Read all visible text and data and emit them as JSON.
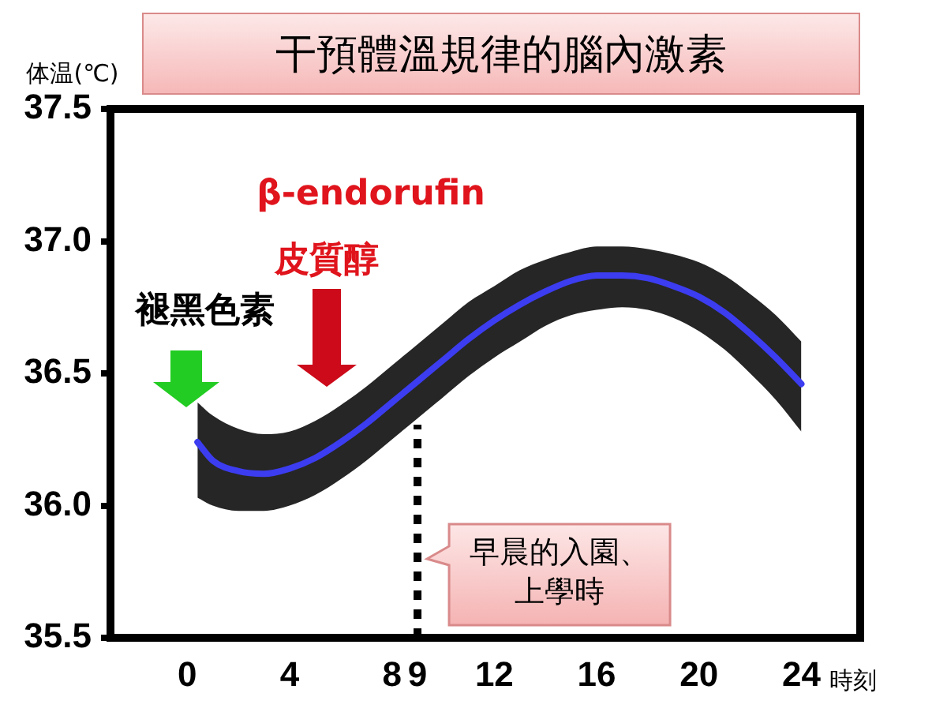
{
  "chart_data": {
    "type": "line",
    "title": "干預體溫規律的腦內激素",
    "xlabel": "時刻",
    "ylabel": "体温(℃)",
    "x": [
      0.4,
      1,
      2,
      3,
      4,
      5,
      6,
      7,
      8,
      9,
      10,
      11,
      12,
      13,
      14,
      15,
      16,
      17,
      18,
      19,
      20,
      21,
      22,
      23,
      24
    ],
    "series": [
      {
        "color": "#3c3cf0",
        "values": [
          36.24,
          36.17,
          36.13,
          36.12,
          36.14,
          36.18,
          36.24,
          36.31,
          36.39,
          36.47,
          36.55,
          36.63,
          36.7,
          36.76,
          36.81,
          36.85,
          36.87,
          36.87,
          36.86,
          36.83,
          36.79,
          36.73,
          36.65,
          36.56,
          36.46
        ],
        "upper": [
          36.39,
          36.34,
          36.29,
          36.27,
          36.28,
          36.32,
          36.38,
          36.45,
          36.53,
          36.61,
          36.69,
          36.77,
          36.83,
          36.89,
          36.93,
          36.96,
          36.98,
          36.98,
          36.97,
          36.95,
          36.92,
          36.87,
          36.8,
          36.72,
          36.62
        ],
        "lower": [
          36.03,
          36.0,
          35.98,
          35.98,
          36.0,
          36.04,
          36.1,
          36.17,
          36.25,
          36.33,
          36.41,
          36.49,
          36.56,
          36.62,
          36.68,
          36.72,
          36.74,
          36.75,
          36.74,
          36.71,
          36.66,
          36.59,
          36.5,
          36.4,
          36.28
        ]
      }
    ],
    "xlim": [
      -3,
      26.3
    ],
    "xticks": [
      0,
      4,
      8,
      9,
      12,
      16,
      20,
      24
    ],
    "ylim": [
      35.5,
      37.5
    ],
    "yticks": [
      35.5,
      {
        "value": 36,
        "label": "36.0"
      },
      36.5,
      {
        "value": 37,
        "label": "37.0"
      },
      37.5
    ],
    "ref_lines": [
      {
        "axis": "x",
        "value": 9,
        "label": "早晨的入園、上學時",
        "line_style": "dotted",
        "color": "#000000"
      }
    ],
    "annotations": [
      "褪黑色素",
      "皮質醇",
      "β-endorufin"
    ],
    "legend": false,
    "marker": "none",
    "line_style": "solid"
  }
}
